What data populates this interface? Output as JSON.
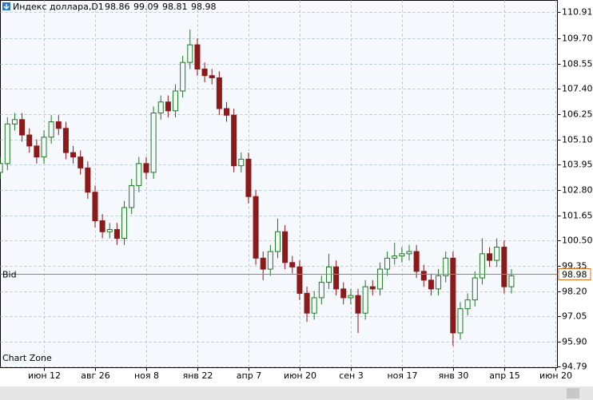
{
  "header": {
    "symbol": "Индекс доллара,D1",
    "quote": [
      98.86,
      99.09,
      98.81,
      98.98
    ]
  },
  "footer": "Chart Zone",
  "chart_data": {
    "type": "candlestick",
    "categories": [
      null,
      null,
      null,
      null,
      null,
      null,
      "июн 12",
      null,
      null,
      null,
      null,
      null,
      null,
      "авг 26",
      null,
      null,
      null,
      null,
      null,
      null,
      "ноя 8",
      null,
      null,
      null,
      null,
      null,
      null,
      "янв 22",
      null,
      null,
      null,
      null,
      null,
      null,
      "апр 7",
      null,
      null,
      null,
      null,
      null,
      null,
      "июн 20",
      null,
      null,
      null,
      null,
      null,
      null,
      "сен 3",
      null,
      null,
      null,
      null,
      null,
      null,
      "ноя 17",
      null,
      null,
      null,
      null,
      null,
      null,
      "янв 30",
      null,
      null,
      null,
      null,
      null,
      null,
      "апр 15",
      null,
      null,
      null,
      null,
      null,
      null,
      "июн 20"
    ],
    "open": [
      103.6,
      104.0,
      105.8,
      106.0,
      105.3,
      104.8,
      104.3,
      105.2,
      105.9,
      105.6,
      104.5,
      104.3,
      103.8,
      102.7,
      101.4,
      100.9,
      101.0,
      100.6,
      102.0,
      103.0,
      104.0,
      103.6,
      106.3,
      106.8,
      106.4,
      107.3,
      108.6,
      109.4,
      108.3,
      108.0,
      107.9,
      106.5,
      106.2,
      103.9,
      104.2,
      102.5,
      99.7,
      99.2,
      100.0,
      100.9,
      99.5,
      99.3,
      98.1,
      97.2,
      97.9,
      98.6,
      99.3,
      98.3,
      97.9,
      98.0,
      97.2,
      98.4,
      98.3,
      99.2,
      99.7,
      99.8,
      99.9,
      100.0,
      99.1,
      98.7,
      98.3,
      98.9,
      99.7,
      96.3,
      97.4,
      97.8,
      98.8,
      99.9,
      99.6,
      100.2,
      98.4,
      null,
      null,
      null,
      null,
      null,
      null
    ],
    "high": [
      104.3,
      106.1,
      106.3,
      106.3,
      105.6,
      105.1,
      105.5,
      106.2,
      106.2,
      105.9,
      104.8,
      104.6,
      104.1,
      103.0,
      101.7,
      101.3,
      101.3,
      102.3,
      103.3,
      104.3,
      104.3,
      106.6,
      107.1,
      107.1,
      107.6,
      108.9,
      110.1,
      109.7,
      108.6,
      108.3,
      108.2,
      106.8,
      106.5,
      104.5,
      104.5,
      102.8,
      100.0,
      100.3,
      101.5,
      101.2,
      99.8,
      99.6,
      98.4,
      98.2,
      98.9,
      99.9,
      99.6,
      98.6,
      98.3,
      98.3,
      98.7,
      98.7,
      99.5,
      100.0,
      100.4,
      100.2,
      100.3,
      100.3,
      99.4,
      99.0,
      99.2,
      100.0,
      100.0,
      97.7,
      98.1,
      99.1,
      100.6,
      100.2,
      100.6,
      100.5,
      99.2,
      null,
      null,
      null,
      null,
      null,
      null
    ],
    "low": [
      103.3,
      103.7,
      105.5,
      105.0,
      104.5,
      104.0,
      104.0,
      104.9,
      105.3,
      104.2,
      104.0,
      103.5,
      102.4,
      101.1,
      100.6,
      100.6,
      100.3,
      100.3,
      101.7,
      102.7,
      103.3,
      103.3,
      106.0,
      106.1,
      106.1,
      107.0,
      108.3,
      108.0,
      107.7,
      107.6,
      106.2,
      105.9,
      103.6,
      103.6,
      102.2,
      99.4,
      98.7,
      98.9,
      99.7,
      99.2,
      99.0,
      97.8,
      96.8,
      96.9,
      97.6,
      98.3,
      98.0,
      97.6,
      97.6,
      96.3,
      96.9,
      98.0,
      98.0,
      98.9,
      99.4,
      99.5,
      99.6,
      98.8,
      98.4,
      98.0,
      98.0,
      98.6,
      95.7,
      96.0,
      97.1,
      97.5,
      98.5,
      99.3,
      99.3,
      98.1,
      98.1,
      null,
      null,
      null,
      null,
      null,
      null
    ],
    "close": [
      104.0,
      105.8,
      106.0,
      105.3,
      104.8,
      104.3,
      105.2,
      105.9,
      105.6,
      104.5,
      104.3,
      103.8,
      102.7,
      101.4,
      100.9,
      101.0,
      100.6,
      102.0,
      103.0,
      104.0,
      103.6,
      106.3,
      106.8,
      106.4,
      107.3,
      108.6,
      109.4,
      108.3,
      108.0,
      107.9,
      106.5,
      106.2,
      103.9,
      104.2,
      102.5,
      99.7,
      99.2,
      100.0,
      100.9,
      99.5,
      99.3,
      98.1,
      97.2,
      97.9,
      98.6,
      99.3,
      98.3,
      97.9,
      98.0,
      97.2,
      98.4,
      98.3,
      99.2,
      99.7,
      99.8,
      99.9,
      100.0,
      99.1,
      98.7,
      98.3,
      98.9,
      99.7,
      96.3,
      97.4,
      97.8,
      98.8,
      99.9,
      99.6,
      100.2,
      98.4,
      98.9,
      null,
      null,
      null,
      null,
      null,
      null
    ],
    "up_color": "#1e7b1e",
    "down_color": "#8b1a1a",
    "ylim": [
      94.72,
      111.42
    ],
    "yticks": [
      110.91,
      {
        "value": 109.7,
        "label": "109.70"
      },
      108.55,
      {
        "value": 107.4,
        "label": "107.40"
      },
      106.25,
      {
        "value": 105.1,
        "label": "105.10"
      },
      103.95,
      {
        "value": 102.8,
        "label": "102.80"
      },
      101.65,
      {
        "value": 100.5,
        "label": "100.50"
      },
      99.35,
      {
        "value": 98.2,
        "label": "98.20"
      },
      97.05,
      {
        "value": 95.9,
        "label": "95.90"
      },
      94.79
    ],
    "grid": true,
    "bid": {
      "label": "Bid",
      "value": 98.98,
      "color": "#e0701e"
    }
  }
}
